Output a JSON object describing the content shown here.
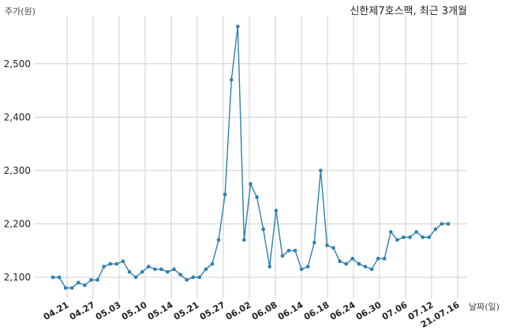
{
  "chart_data": {
    "type": "line",
    "title": "신한제7호스팩, 최근 3개월",
    "ylabel": "주가(원)",
    "xlabel": "날짜(일)",
    "ylim": [
      2060,
      2590
    ],
    "yticks": [
      2100,
      2200,
      2300,
      2400,
      2500
    ],
    "ytick_labels": [
      "2,100",
      "2,200",
      "2,300",
      "2,400",
      "2,500"
    ],
    "xtick_labels": [
      "04.21",
      "04.27",
      "05.03",
      "05.10",
      "05.14",
      "05.21",
      "05.27",
      "06.02",
      "06.08",
      "06.14",
      "06.18",
      "06.24",
      "06.30",
      "07.06",
      "07.12",
      "21.07.16"
    ],
    "grid": true,
    "color": "#2e7fb0",
    "series": [
      {
        "values": [
          2100,
          2100,
          2080,
          2080,
          2090,
          2085,
          2095,
          2095,
          2120,
          2125,
          2125,
          2130,
          2110,
          2100,
          2110,
          2120,
          2115,
          2115,
          2110,
          2115,
          2105,
          2095,
          2100,
          2100,
          2115,
          2125,
          2170,
          2255,
          2470,
          2570,
          2170,
          2275,
          2250,
          2190,
          2120,
          2225,
          2140,
          2150,
          2150,
          2115,
          2120,
          2165,
          2300,
          2160,
          2155,
          2130,
          2125,
          2135,
          2125,
          2120,
          2115,
          2135,
          2135,
          2185,
          2170,
          2175,
          2175,
          2185,
          2175,
          2175,
          2190,
          2200,
          2200
        ]
      }
    ]
  }
}
